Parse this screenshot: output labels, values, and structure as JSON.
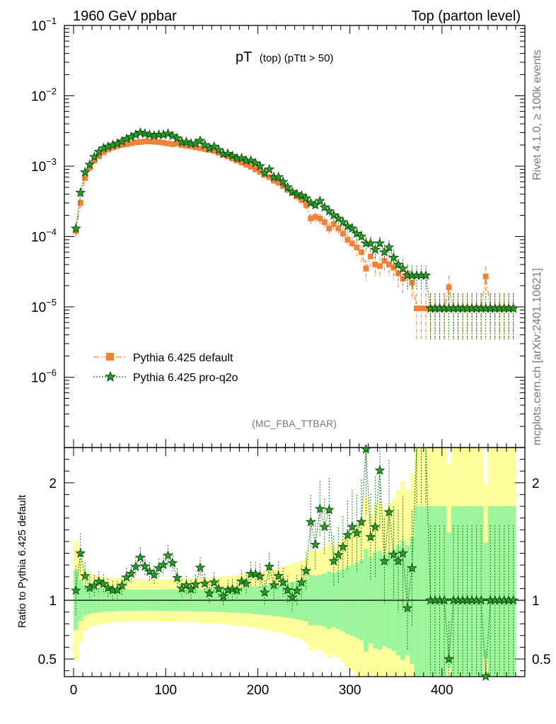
{
  "header": {
    "left": "1960 GeV ppbar",
    "right": "Top (parton level)"
  },
  "side_labels": {
    "rivet": "Rivet 4.1.0, ≥ 100k events",
    "mcplots": "mcplots.cern.ch [arXiv:2401.10621]"
  },
  "chart_data": {
    "type": "scatter",
    "title": "pT (top) (pTtt > 50)",
    "title_main": "pT",
    "title_sub": "(top)  (pTtt > 50)",
    "analysis_tag": "(MC_FBA_TTBAR)",
    "x_axis": {
      "range": [
        -10,
        490
      ],
      "ticks": [
        0,
        100,
        200,
        300,
        400
      ],
      "tick_labels": [
        "0",
        "100",
        "200",
        "300",
        "400"
      ],
      "label": ""
    },
    "y_axis": {
      "scale": "log",
      "range": [
        1e-07,
        0.1
      ],
      "tick_exponents": [
        -6,
        -5,
        -4,
        -3,
        -2,
        -1
      ],
      "tick_labels": [
        "10⁻⁶",
        "10⁻⁵",
        "10⁻⁴",
        "10⁻³",
        "10⁻²",
        "10⁻¹"
      ]
    },
    "ratio_axis": {
      "label": "Ratio to Pythia 6.425 default",
      "range": [
        0.35,
        2.3
      ],
      "ticks": [
        0.5,
        1,
        2
      ],
      "tick_labels": [
        "0.5",
        "1",
        "2"
      ]
    },
    "legend": {
      "placement": "middle-left",
      "entries": [
        "Pythia 6.425 default",
        "Pythia 6.425 pro-q2o"
      ]
    },
    "colors": {
      "default": "#f2813a",
      "proq2o": "#1a7a1a",
      "band_inner": "#9cf59c",
      "band_outer": "#fdfd9c"
    },
    "x": [
      2.5,
      7.5,
      12.5,
      17.5,
      22.5,
      27.5,
      32.5,
      37.5,
      42.5,
      47.5,
      52.5,
      57.5,
      62.5,
      67.5,
      72.5,
      77.5,
      82.5,
      87.5,
      92.5,
      97.5,
      102.5,
      107.5,
      112.5,
      117.5,
      122.5,
      127.5,
      132.5,
      137.5,
      142.5,
      147.5,
      152.5,
      157.5,
      162.5,
      167.5,
      172.5,
      177.5,
      182.5,
      187.5,
      192.5,
      197.5,
      202.5,
      207.5,
      212.5,
      217.5,
      222.5,
      227.5,
      232.5,
      237.5,
      242.5,
      247.5,
      252.5,
      257.5,
      262.5,
      267.5,
      272.5,
      277.5,
      282.5,
      287.5,
      292.5,
      297.5,
      302.5,
      307.5,
      312.5,
      317.5,
      322.5,
      327.5,
      332.5,
      337.5,
      342.5,
      347.5,
      352.5,
      357.5,
      362.5,
      367.5,
      372.5,
      377.5,
      382.5,
      387.5,
      392.5,
      397.5,
      402.5,
      407.5,
      412.5,
      417.5,
      422.5,
      427.5,
      432.5,
      437.5,
      442.5,
      447.5,
      452.5,
      457.5,
      462.5,
      467.5,
      472.5,
      477.5
    ],
    "series": [
      {
        "name": "Pythia 6.425 default",
        "marker": "square",
        "line": "dash-dot",
        "values": [
          0.00012,
          0.0003,
          0.00068,
          0.00095,
          0.0012,
          0.00138,
          0.00158,
          0.00172,
          0.00184,
          0.00193,
          0.002,
          0.00205,
          0.00212,
          0.00218,
          0.0022,
          0.00225,
          0.00225,
          0.00222,
          0.0022,
          0.00215,
          0.0021,
          0.00205,
          0.0021,
          0.002,
          0.00195,
          0.00192,
          0.00185,
          0.0018,
          0.00175,
          0.0017,
          0.00165,
          0.00155,
          0.00145,
          0.00138,
          0.00128,
          0.0012,
          0.00112,
          0.00105,
          0.00098,
          0.0009,
          0.00083,
          0.00075,
          0.0007,
          0.00062,
          0.00058,
          0.00052,
          0.00046,
          0.00042,
          0.00037,
          0.00033,
          0.00028,
          0.00018,
          0.00019,
          0.00018,
          0.00016,
          0.00013,
          0.00015,
          0.00013,
          0.00011,
          9e-05,
          8e-05,
          7e-05,
          6e-05,
          3.5e-05,
          5.2e-05,
          4e-05,
          3.8e-05,
          4.5e-05,
          4e-05,
          3.6e-05,
          3e-05,
          2.5e-05,
          3e-05,
          2.2e-05,
          9.5e-06,
          9.5e-06,
          9.5e-06,
          9.5e-06,
          9.5e-06,
          9.5e-06,
          9.5e-06,
          1.9e-05,
          9.5e-06,
          9.5e-06,
          9.5e-06,
          9.5e-06,
          9.5e-06,
          9.5e-06,
          9.5e-06,
          2.7e-05,
          9.5e-06,
          9.5e-06,
          9.5e-06,
          9.5e-06,
          9.5e-06,
          9.5e-06
        ]
      },
      {
        "name": "Pythia 6.425 pro-q2o",
        "marker": "star",
        "line": "dotted",
        "values": [
          0.00013,
          0.00042,
          0.00082,
          0.00105,
          0.00135,
          0.0016,
          0.0018,
          0.0019,
          0.002,
          0.0021,
          0.00225,
          0.00245,
          0.0026,
          0.0028,
          0.003,
          0.0029,
          0.0028,
          0.0027,
          0.0028,
          0.0028,
          0.0029,
          0.0027,
          0.0025,
          0.0022,
          0.0022,
          0.0021,
          0.0021,
          0.0023,
          0.002,
          0.0018,
          0.0019,
          0.0017,
          0.0015,
          0.0015,
          0.0014,
          0.0013,
          0.0013,
          0.0012,
          0.0012,
          0.0011,
          0.001,
          0.0008,
          0.0009,
          0.0007,
          0.0007,
          0.0006,
          0.0005,
          0.00043,
          0.0004,
          0.00038,
          0.00035,
          0.0003,
          0.00028,
          0.00032,
          0.00026,
          0.00023,
          0.0002,
          0.00018,
          0.00016,
          0.00014,
          0.00013,
          0.00011,
          0.0001,
          8e-05,
          8e-05,
          6.5e-05,
          8e-05,
          6e-05,
          7e-05,
          5e-05,
          4e-05,
          3.5e-05,
          2.8e-05,
          2.8e-05,
          2.8e-05,
          2.8e-05,
          2.8e-05,
          9.5e-06,
          9.5e-06,
          9.5e-06,
          9.5e-06,
          9.5e-06,
          9.5e-06,
          9.5e-06,
          9.5e-06,
          9.5e-06,
          9.5e-06,
          9.5e-06,
          9.5e-06,
          9.5e-06,
          9.5e-06,
          9.5e-06,
          9.5e-06,
          9.5e-06,
          9.5e-06,
          9.5e-06
        ]
      }
    ]
  }
}
